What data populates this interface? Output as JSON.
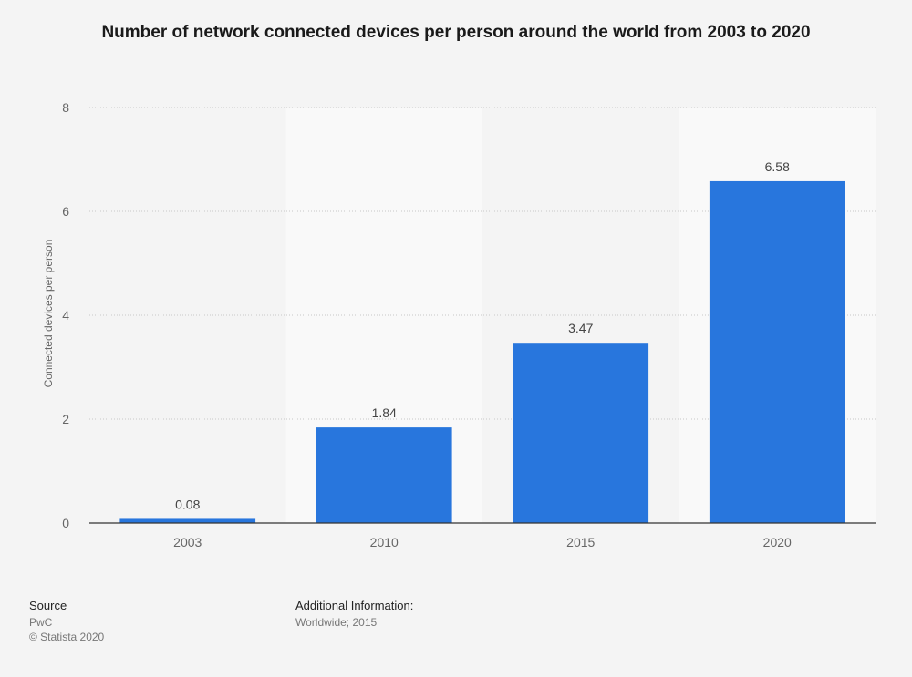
{
  "chart_data": {
    "type": "bar",
    "title": "Number of network connected devices per person around the world from 2003 to 2020",
    "xlabel": "",
    "ylabel": "Connected devices per person",
    "categories": [
      "2003",
      "2010",
      "2015",
      "2020"
    ],
    "values": [
      0.08,
      1.84,
      3.47,
      6.58
    ],
    "value_labels": [
      "0.08",
      "1.84",
      "3.47",
      "6.58"
    ],
    "ylim": [
      0,
      8
    ],
    "yticks": [
      0,
      2,
      4,
      6,
      8
    ],
    "grid": true,
    "legend": "none",
    "colors": {
      "bar": "#2876dd",
      "band": "#f9f9f9",
      "grid": "#c8c8c8",
      "axis": "#333333",
      "tick_text": "#666666",
      "value_text": "#444444"
    }
  },
  "footer": {
    "source_heading": "Source",
    "source_name": "PwC",
    "copyright": "© Statista 2020",
    "info_heading": "Additional Information:",
    "info_text": "Worldwide; 2015"
  }
}
